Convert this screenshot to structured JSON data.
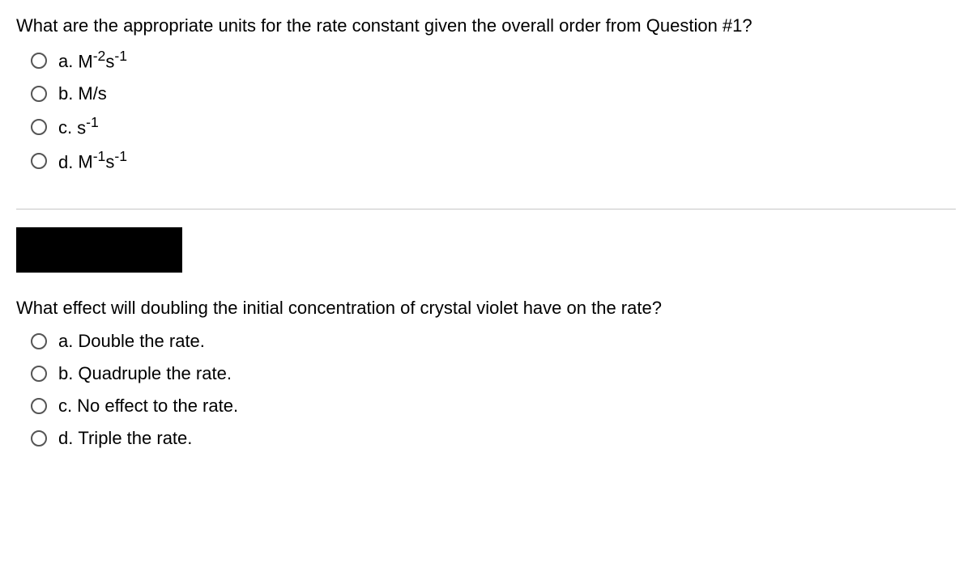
{
  "q1": {
    "prompt": "What are the appropriate units for the rate constant given the overall order from Question #1?",
    "options": [
      {
        "letter": "a.",
        "base1": "M",
        "exp1": "-2",
        "base2": "s",
        "exp2": "-1",
        "plain": null
      },
      {
        "letter": "b.",
        "base1": null,
        "exp1": null,
        "base2": null,
        "exp2": null,
        "plain": "M/s"
      },
      {
        "letter": "c.",
        "base1": "s",
        "exp1": "-1",
        "base2": null,
        "exp2": null,
        "plain": null
      },
      {
        "letter": "d.",
        "base1": "M",
        "exp1": "-1",
        "base2": "s",
        "exp2": "-1",
        "plain": null
      }
    ]
  },
  "q2": {
    "prompt": "What effect will doubling the initial concentration of crystal violet have on the rate?",
    "options": [
      {
        "letter": "a.",
        "text": "Double the rate."
      },
      {
        "letter": "b.",
        "text": "Quadruple the rate."
      },
      {
        "letter": "c.",
        "text": "No effect to the rate."
      },
      {
        "letter": "d.",
        "text": "Triple the rate."
      }
    ]
  }
}
